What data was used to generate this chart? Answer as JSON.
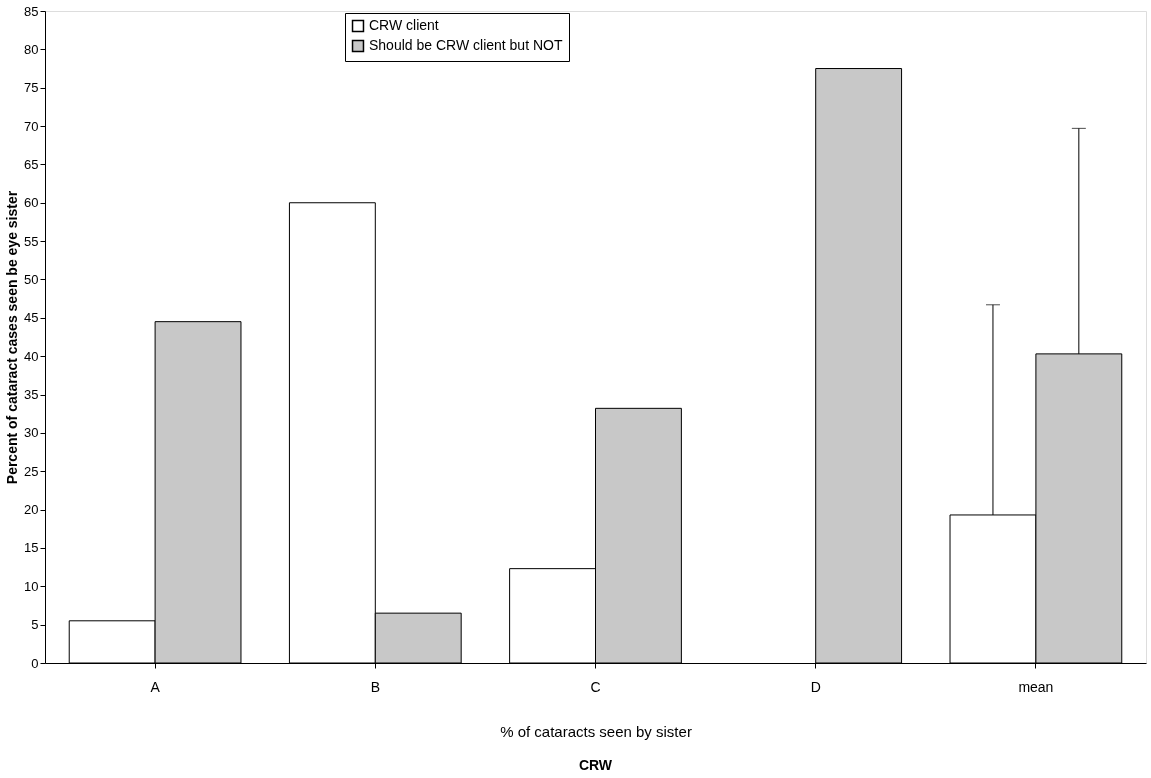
{
  "chart_data": {
    "type": "bar",
    "xlabel": "% of cataracts seen by sister",
    "ylabel": "Percent of cataract cases seen be eye sister",
    "categories": [
      "A",
      "B",
      "C",
      "D",
      "mean"
    ],
    "series": [
      {
        "name": "CRW client",
        "color": "#ffffff",
        "values": [
          5.5,
          60,
          12.3,
          null,
          19.3
        ],
        "errors": [
          null,
          null,
          null,
          null,
          [
            19.3,
            46.7
          ]
        ]
      },
      {
        "name": "Should be CRW client but NOT",
        "color": "#c8c8c8",
        "values": [
          44.5,
          6.5,
          33.2,
          77.5,
          40.3
        ],
        "errors": [
          null,
          null,
          null,
          null,
          [
            40.3,
            69.7
          ]
        ]
      }
    ],
    "ylim": [
      0,
      85
    ],
    "yticks": [
      0,
      5,
      10,
      15,
      20,
      25,
      30,
      35,
      40,
      45,
      50,
      55,
      60,
      65,
      70,
      75,
      80,
      85
    ],
    "grid": false,
    "legend": "top",
    "annotations": [
      "CRW"
    ]
  }
}
